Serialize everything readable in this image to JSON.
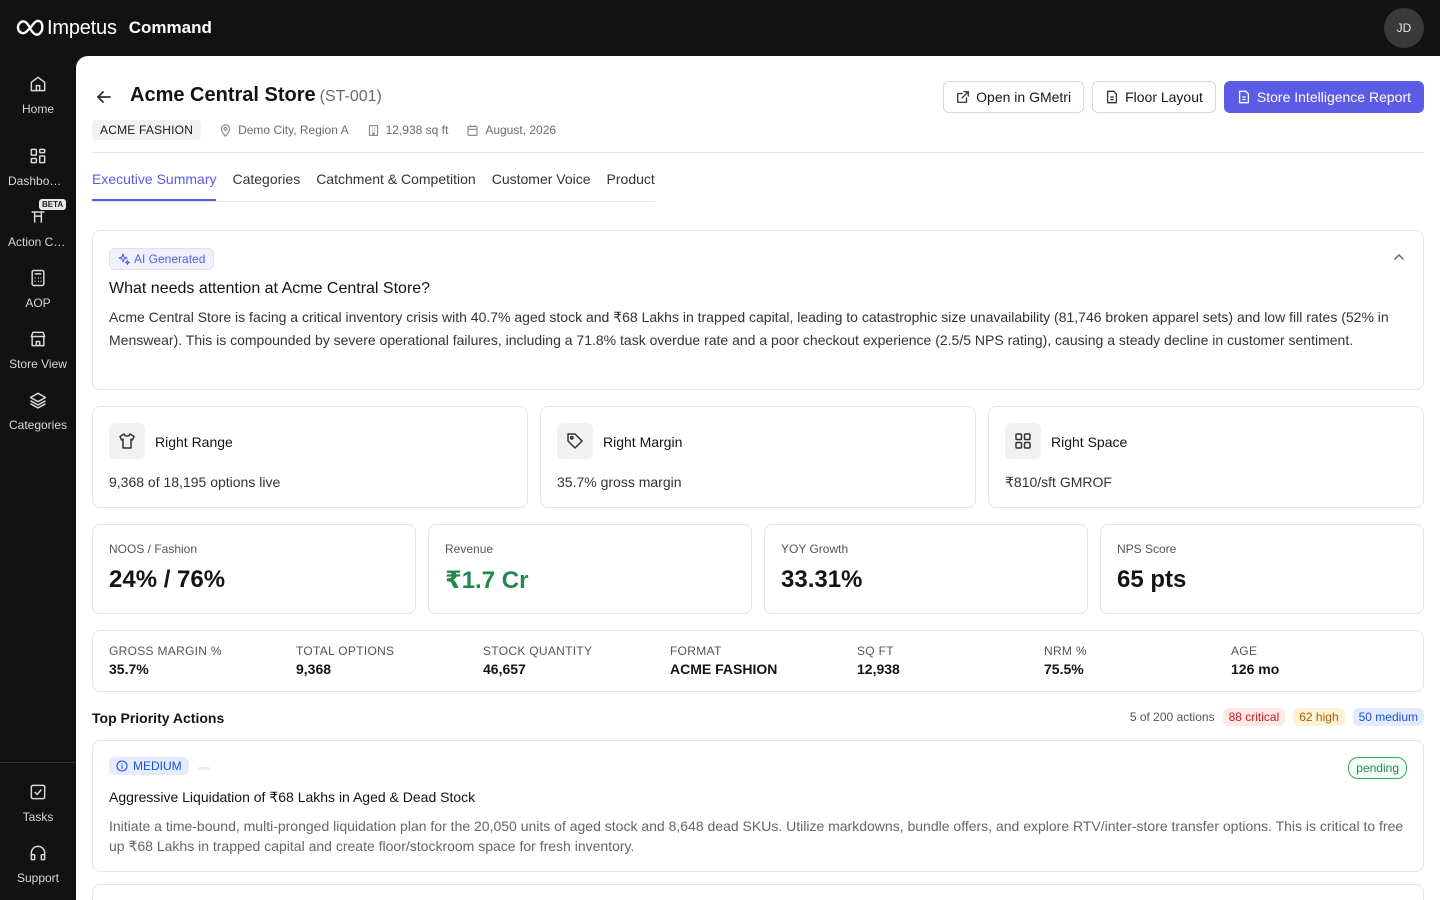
{
  "app": {
    "brand": "Impetus",
    "module": "Command",
    "user_initials": "JD"
  },
  "sidebar": {
    "items": [
      {
        "label": "Home",
        "icon": "home-icon"
      },
      {
        "label": "Dashboards",
        "icon": "dashboard-icon"
      },
      {
        "label": "Action Center",
        "icon": "action-icon",
        "badge": "BETA"
      },
      {
        "label": "AOP",
        "icon": "calculator-icon"
      },
      {
        "label": "Store View",
        "icon": "store-icon"
      },
      {
        "label": "Categories",
        "icon": "layers-icon"
      }
    ],
    "bottom": [
      {
        "label": "Tasks",
        "icon": "tasks-icon"
      },
      {
        "label": "Support",
        "icon": "headphones-icon"
      }
    ]
  },
  "store": {
    "name": "Acme Central Store",
    "code": "(ST-001)",
    "format": "ACME FASHION",
    "location": "Demo City, Region A",
    "area": "12,938 sq ft",
    "date": "August, 2026"
  },
  "actions": {
    "open_gmetri": "Open in GMetri",
    "floor_layout": "Floor Layout",
    "report": "Store Intelligence Report"
  },
  "tabs": [
    {
      "label": "Executive Summary",
      "active": true
    },
    {
      "label": "Categories",
      "active": false
    },
    {
      "label": "Catchment & Competition",
      "active": false
    },
    {
      "label": "Customer Voice",
      "active": false
    },
    {
      "label": "Product",
      "active": false
    }
  ],
  "ai_summary": {
    "badge": "AI Generated",
    "question": "What needs attention at Acme Central Store?",
    "text": "Acme Central Store is facing a critical inventory crisis with 40.7% aged stock and ₹68 Lakhs in trapped capital, leading to catastrophic size unavailability (81,746 broken apparel sets) and low fill rates (52% in Menswear). This is compounded by severe operational failures, including a 71.8% task overdue rate and a poor checkout experience (2.5/5 NPS rating), causing a steady decline in customer sentiment."
  },
  "pillars": [
    {
      "title": "Right Range",
      "value": "9,368 of 18,195 options live",
      "icon": "shirt-icon"
    },
    {
      "title": "Right Margin",
      "value": "35.7% gross margin",
      "icon": "tag-icon"
    },
    {
      "title": "Right Space",
      "value": "₹810/sft GMROF",
      "icon": "grid-icon"
    }
  ],
  "kpis": [
    {
      "label": "NOOS / Fashion",
      "value": "24% / 76%"
    },
    {
      "label": "Revenue",
      "value": "₹1.7 Cr"
    },
    {
      "label": "YOY Growth",
      "value": "33.31%"
    },
    {
      "label": "NPS Score",
      "value": "65 pts"
    }
  ],
  "stats": [
    {
      "label": "GROSS MARGIN %",
      "value": "35.7%"
    },
    {
      "label": "TOTAL OPTIONS",
      "value": "9,368"
    },
    {
      "label": "STOCK QUANTITY",
      "value": "46,657"
    },
    {
      "label": "FORMAT",
      "value": "ACME FASHION"
    },
    {
      "label": "SQ FT",
      "value": "12,938"
    },
    {
      "label": "NRM %",
      "value": "75.5%"
    },
    {
      "label": "AGE",
      "value": "126 mo"
    }
  ],
  "priority": {
    "title": "Top Priority Actions",
    "count": "5 of 200 actions",
    "critical": "88 critical",
    "high": "62 high",
    "medium": "50 medium"
  },
  "action_item": {
    "severity": "MEDIUM",
    "status": "pending",
    "title": "Aggressive Liquidation of ₹68 Lakhs in Aged & Dead Stock",
    "description": "Initiate a time-bound, multi-pronged liquidation plan for the 20,050 units of aged stock and 8,648 dead SKUs. Utilize markdowns, bundle offers, and explore RTV/inter-store transfer options. This is critical to free up ₹68 Lakhs in trapped capital and create floor/stockroom space for fresh inventory."
  },
  "colors": {
    "accent": "#5b5be6",
    "positive": "#1f8a4c",
    "critical": "#c81e1e",
    "high": "#a16207",
    "medium": "#1d4ed8"
  }
}
